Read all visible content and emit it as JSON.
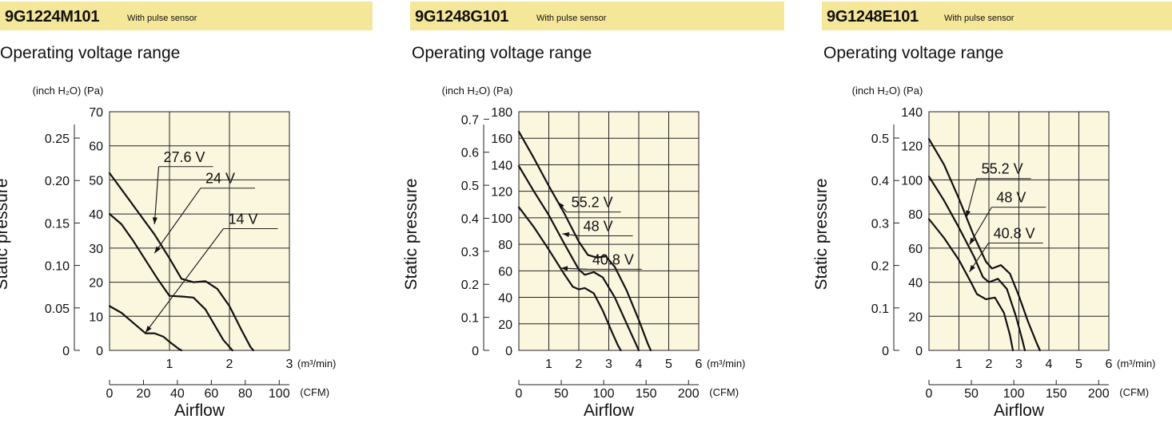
{
  "charts": [
    {
      "model": "9G1224M101",
      "sensor": "With pulse sensor",
      "subtitle": "Operating voltage range",
      "ylabel": "Static pressure",
      "xlabel": "Airflow",
      "y_unit_inch": "(inch H₂O)",
      "y_unit_pa": "(Pa)",
      "x_unit_m3": "(m³/min)",
      "x_unit_cfm": "(CFM)",
      "colors": {
        "plot_bg": "#fbf7df",
        "header_bg": "#f5e79a",
        "curve": "#111111"
      }
    },
    {
      "model": "9G1248G101",
      "sensor": "With pulse sensor",
      "subtitle": "Operating voltage range",
      "ylabel": "Static pressure",
      "xlabel": "Airflow",
      "y_unit_inch": "(inch H₂O)",
      "y_unit_pa": "(Pa)",
      "x_unit_m3": "(m³/min)",
      "x_unit_cfm": "(CFM)",
      "colors": {
        "plot_bg": "#fbf7df",
        "header_bg": "#f5e79a",
        "curve": "#111111"
      }
    },
    {
      "model": "9G1248E101",
      "sensor": "With pulse sensor",
      "subtitle": "Operating voltage range",
      "ylabel": "Static pressure",
      "xlabel": "Airflow",
      "y_unit_inch": "(inch H₂O)",
      "y_unit_pa": "(Pa)",
      "x_unit_m3": "(m³/min)",
      "x_unit_cfm": "(CFM)",
      "colors": {
        "plot_bg": "#fbf7df",
        "header_bg": "#f5e79a",
        "curve": "#111111"
      }
    }
  ],
  "chart_data": [
    {
      "type": "line",
      "title": "9G1224M101",
      "subtitle": "Operating voltage range",
      "xlabel": "Airflow",
      "ylabel": "Static pressure",
      "xlim": [
        0,
        3
      ],
      "ylim": [
        0,
        70
      ],
      "x_ticks": [
        1,
        2,
        3
      ],
      "y_ticks": [
        0,
        10,
        20,
        30,
        40,
        50,
        60,
        70
      ],
      "y2_ticks": [
        "0",
        "0.05",
        "0.10",
        "0.15",
        "0.20",
        "0.25"
      ],
      "y2_values": [
        0,
        0.05,
        0.1,
        0.15,
        0.2,
        0.25
      ],
      "cfm_ticks": [
        0,
        20,
        40,
        60,
        80,
        100
      ],
      "grid": true,
      "series": [
        {
          "name": "27.6 V",
          "x": [
            0,
            0.25,
            0.5,
            0.75,
            1.0,
            1.2,
            1.4,
            1.6,
            1.8,
            2.0,
            2.2,
            2.35,
            2.4
          ],
          "y": [
            52,
            46,
            40,
            34,
            27,
            21,
            20,
            20.3,
            18,
            13,
            6,
            1,
            0
          ]
        },
        {
          "name": "24 V",
          "x": [
            0,
            0.2,
            0.4,
            0.6,
            0.8,
            1.0,
            1.2,
            1.4,
            1.6,
            1.8,
            1.9,
            2.0,
            2.05
          ],
          "y": [
            40,
            37,
            32,
            26.5,
            21,
            16,
            15.8,
            15.5,
            12,
            6,
            3,
            1,
            0
          ]
        },
        {
          "name": "14 V",
          "x": [
            0,
            0.2,
            0.4,
            0.6,
            0.75,
            0.9,
            1.0,
            1.15,
            1.2
          ],
          "y": [
            13,
            11,
            8,
            5,
            5,
            4,
            2.5,
            0.5,
            0
          ]
        }
      ]
    },
    {
      "type": "line",
      "title": "9G1248G101",
      "subtitle": "Operating voltage range",
      "xlabel": "Airflow",
      "ylabel": "Static pressure",
      "xlim": [
        0,
        6
      ],
      "ylim": [
        0,
        180
      ],
      "x_ticks": [
        1,
        2,
        3,
        4,
        5,
        6
      ],
      "y_ticks": [
        0,
        20,
        40,
        60,
        80,
        100,
        120,
        140,
        160,
        180
      ],
      "y2_ticks": [
        "0",
        "0.1",
        "0.2",
        "0.3",
        "0.4",
        "0.5",
        "0.6",
        "0.7"
      ],
      "y2_values": [
        0,
        0.1,
        0.2,
        0.3,
        0.4,
        0.5,
        0.6,
        0.7
      ],
      "cfm_ticks": [
        0,
        50,
        100,
        150,
        200
      ],
      "grid": true,
      "series": [
        {
          "name": "55.2 V",
          "x": [
            0,
            0.5,
            1.0,
            1.5,
            2.0,
            2.3,
            2.6,
            2.9,
            3.2,
            3.6,
            4.0,
            4.3,
            4.4
          ],
          "y": [
            165,
            145,
            124,
            104,
            82,
            72,
            70,
            71,
            63,
            45,
            23,
            5,
            0
          ]
        },
        {
          "name": "48 V",
          "x": [
            0,
            0.5,
            1.0,
            1.5,
            2.0,
            2.2,
            2.5,
            2.8,
            3.2,
            3.6,
            3.9,
            4.0
          ],
          "y": [
            139,
            120,
            102,
            81,
            61,
            57,
            59,
            55,
            40,
            20,
            5,
            0
          ]
        },
        {
          "name": "40.8 V",
          "x": [
            0,
            0.5,
            1.0,
            1.5,
            1.8,
            2.0,
            2.2,
            2.5,
            2.8,
            3.1,
            3.3,
            3.4
          ],
          "y": [
            108,
            93,
            76,
            58,
            48,
            46,
            47,
            43,
            30,
            14,
            4,
            0
          ]
        }
      ]
    },
    {
      "type": "line",
      "title": "9G1248E101",
      "subtitle": "Operating voltage range",
      "xlabel": "Airflow",
      "ylabel": "Static pressure",
      "xlim": [
        0,
        6
      ],
      "ylim": [
        0,
        140
      ],
      "x_ticks": [
        1,
        2,
        3,
        4,
        5,
        6
      ],
      "y_ticks": [
        0,
        20,
        40,
        60,
        80,
        100,
        120,
        140
      ],
      "y2_ticks": [
        "0",
        "0.1",
        "0.2",
        "0.3",
        "0.4",
        "0.5"
      ],
      "y2_values": [
        0,
        0.1,
        0.2,
        0.3,
        0.4,
        0.5
      ],
      "cfm_ticks": [
        0,
        50,
        100,
        150,
        200
      ],
      "grid": true,
      "series": [
        {
          "name": "55.2 V",
          "x": [
            0,
            0.5,
            1.0,
            1.5,
            1.9,
            2.1,
            2.4,
            2.7,
            3.0,
            3.3,
            3.6,
            3.7
          ],
          "y": [
            124,
            109,
            89,
            67,
            52,
            48,
            50,
            45,
            32,
            17,
            4,
            0
          ]
        },
        {
          "name": "48 V",
          "x": [
            0,
            0.5,
            1.0,
            1.5,
            1.8,
            2.0,
            2.3,
            2.6,
            2.9,
            3.1,
            3.2
          ],
          "y": [
            102,
            88,
            72,
            55,
            43,
            40,
            42,
            36,
            20,
            7,
            0
          ]
        },
        {
          "name": "40.8 V",
          "x": [
            0,
            0.5,
            1.0,
            1.4,
            1.6,
            1.9,
            2.2,
            2.5,
            2.7,
            2.8
          ],
          "y": [
            77,
            66,
            53,
            40,
            33,
            30,
            31,
            22,
            9,
            0
          ]
        }
      ]
    }
  ]
}
